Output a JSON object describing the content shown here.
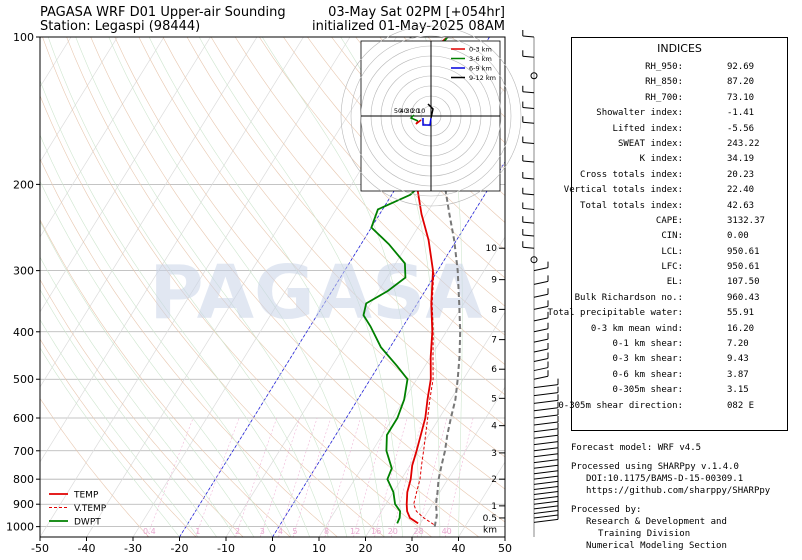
{
  "header": {
    "title_line1": "PAGASA WRF D01 Upper-air Sounding",
    "title_line2": "Station: Legaspi (98444)",
    "valid_line": "03-May Sat 02PM [+054hr]",
    "init_line": "initialized 01-May-2025 08AM"
  },
  "watermark": "PAGASA",
  "chart_data": {
    "type": "line",
    "x_ticks": [
      -50,
      -40,
      -30,
      -20,
      -10,
      0,
      10,
      20,
      30,
      40,
      50
    ],
    "y_ticks": [
      100,
      200,
      300,
      400,
      500,
      600,
      700,
      800,
      900,
      1000
    ],
    "xlim": [
      -50,
      50
    ],
    "ylim": [
      1050,
      100
    ],
    "y_scale": "log",
    "legend_position": "bottom-left",
    "series": [
      {
        "name": "TEMP",
        "color": "#e00000",
        "points": [
          [
            29.5,
            985
          ],
          [
            27,
            960
          ],
          [
            25.5,
            930
          ],
          [
            24.5,
            900
          ],
          [
            23,
            850
          ],
          [
            22,
            800
          ],
          [
            20.5,
            750
          ],
          [
            19.5,
            700
          ],
          [
            17,
            600
          ],
          [
            15,
            550
          ],
          [
            13,
            500
          ],
          [
            10,
            450
          ],
          [
            7,
            400
          ],
          [
            3,
            350
          ],
          [
            -1,
            300
          ],
          [
            -6,
            260
          ],
          [
            -11,
            230
          ],
          [
            -16,
            200
          ],
          [
            -21,
            175
          ],
          [
            -26,
            155
          ],
          [
            -30,
            140
          ],
          [
            -33,
            127
          ],
          [
            -33,
            118
          ],
          [
            -31,
            108
          ],
          [
            -29,
            100
          ]
        ]
      },
      {
        "name": "V.TEMP",
        "color": "#e00000",
        "points": [
          [
            33,
            990
          ],
          [
            30,
            960
          ],
          [
            27.5,
            930
          ],
          [
            26,
            900
          ],
          [
            25,
            850
          ],
          [
            24,
            800
          ],
          [
            22.5,
            750
          ],
          [
            21,
            700
          ],
          [
            17.5,
            600
          ],
          [
            15.5,
            550
          ],
          [
            13.5,
            500
          ],
          [
            10.5,
            450
          ],
          [
            7.2,
            400
          ],
          [
            3.2,
            350
          ],
          [
            -0.8,
            300
          ]
        ]
      },
      {
        "name": "DWPT",
        "color": "#008000",
        "points": [
          [
            25,
            985
          ],
          [
            24.8,
            960
          ],
          [
            24,
            930
          ],
          [
            22,
            900
          ],
          [
            20,
            850
          ],
          [
            17,
            800
          ],
          [
            16.5,
            760
          ],
          [
            13,
            700
          ],
          [
            11,
            650
          ],
          [
            11,
            600
          ],
          [
            10,
            550
          ],
          [
            8,
            500
          ],
          [
            4,
            470
          ],
          [
            -2,
            430
          ],
          [
            -7,
            390
          ],
          [
            -10,
            370
          ],
          [
            -11,
            350
          ],
          [
            -8,
            330
          ],
          [
            -6,
            310
          ],
          [
            -8,
            290
          ],
          [
            -14,
            265
          ],
          [
            -20,
            245
          ],
          [
            -21,
            225
          ],
          [
            -16,
            210
          ],
          [
            -15,
            200
          ],
          [
            -20,
            180
          ],
          [
            -24,
            165
          ],
          [
            -28,
            150
          ],
          [
            -30,
            138
          ],
          [
            -31,
            125
          ],
          [
            -30,
            112
          ],
          [
            -29,
            100
          ]
        ]
      }
    ],
    "parcel": {
      "color": "#777777",
      "style": "dashed",
      "points": [
        [
          33.5,
          1000
        ],
        [
          32.5,
          950
        ],
        [
          30.8,
          900
        ],
        [
          29.5,
          850
        ],
        [
          28,
          800
        ],
        [
          26.8,
          750
        ],
        [
          25.6,
          700
        ],
        [
          24,
          650
        ],
        [
          22.5,
          600
        ],
        [
          21,
          550
        ],
        [
          18.8,
          500
        ],
        [
          16.2,
          450
        ],
        [
          13,
          400
        ],
        [
          9,
          350
        ],
        [
          4.3,
          300
        ],
        [
          -0.5,
          260
        ],
        [
          -5,
          230
        ],
        [
          -10,
          200
        ],
        [
          -16,
          170
        ],
        [
          -22,
          145
        ],
        [
          -28,
          125
        ],
        [
          -33,
          110
        ],
        [
          -37,
          100
        ]
      ]
    },
    "height_labels": [
      {
        "label": "km",
        "p": 1000
      },
      {
        "label": "0.5",
        "p": 960
      },
      {
        "label": "1",
        "p": 907
      },
      {
        "label": "2",
        "p": 800
      },
      {
        "label": "3",
        "p": 707
      },
      {
        "label": "4",
        "p": 622
      },
      {
        "label": "5",
        "p": 547
      },
      {
        "label": "6",
        "p": 477
      },
      {
        "label": "7",
        "p": 415
      },
      {
        "label": "8",
        "p": 360
      },
      {
        "label": "9",
        "p": 313
      },
      {
        "label": "10",
        "p": 270
      }
    ],
    "mixing_ratio_labels": [
      "0.4",
      "1",
      "2",
      "3",
      "4",
      "5",
      "8",
      "12",
      "16",
      "20",
      "28",
      "40"
    ],
    "hodograph": {
      "ring_labels": [
        "50",
        "40",
        "30",
        "20",
        "10"
      ],
      "legend": [
        {
          "name": "0-3 km",
          "color": "#e00000"
        },
        {
          "name": "3-6 km",
          "color": "#008000"
        },
        {
          "name": "6-9 km",
          "color": "#0000dd"
        },
        {
          "name": "9-12 km",
          "color": "#000000"
        }
      ]
    }
  },
  "indices": {
    "title": "INDICES",
    "rows": [
      {
        "label": "RH_950:",
        "value": "92.69"
      },
      {
        "label": "RH_850:",
        "value": "87.20"
      },
      {
        "label": "RH_700:",
        "value": "73.10"
      },
      {
        "label": "Showalter index:",
        "value": "-1.41"
      },
      {
        "label": "Lifted index:",
        "value": "-5.56"
      },
      {
        "label": "SWEAT index:",
        "value": "243.22"
      },
      {
        "label": "K index:",
        "value": "34.19"
      },
      {
        "label": "Cross totals index:",
        "value": "20.23"
      },
      {
        "label": "Vertical totals index:",
        "value": "22.40"
      },
      {
        "label": "Total totals index:",
        "value": "42.63"
      },
      {
        "label": "CAPE:",
        "value": "3132.37"
      },
      {
        "label": "CIN:",
        "value": "0.00"
      },
      {
        "label": "LCL:",
        "value": "950.61"
      },
      {
        "label": "LFC:",
        "value": "950.61"
      },
      {
        "label": "EL:",
        "value": "107.50"
      },
      {
        "label": "Bulk Richardson no.:",
        "value": "960.43"
      },
      {
        "label": "Total precipitable water:",
        "value": "55.91"
      },
      {
        "label": "0-3 km mean wind:",
        "value": "16.20"
      },
      {
        "label": "0-1 km shear:",
        "value": "7.20"
      },
      {
        "label": "0-3 km shear:",
        "value": "9.43"
      },
      {
        "label": "0-6 km shear:",
        "value": "3.87"
      },
      {
        "label": "0-305m shear:",
        "value": "3.15"
      },
      {
        "label": "0-305m shear direction:",
        "value": "082 E"
      }
    ]
  },
  "footer": {
    "forecast_model": "Forecast model: WRF v4.5",
    "processed_using": "Processed using SHARPpy v.1.4.0",
    "doi": "DOI:10.1175/BAMS-D-15-00309.1",
    "url": "https://github.com/sharppy/SHARPpy",
    "processed_by": "Processed by:",
    "org_line1": "Research & Development and",
    "org_line2": "Training Division",
    "org_line3": "Numerical Modeling Section"
  }
}
